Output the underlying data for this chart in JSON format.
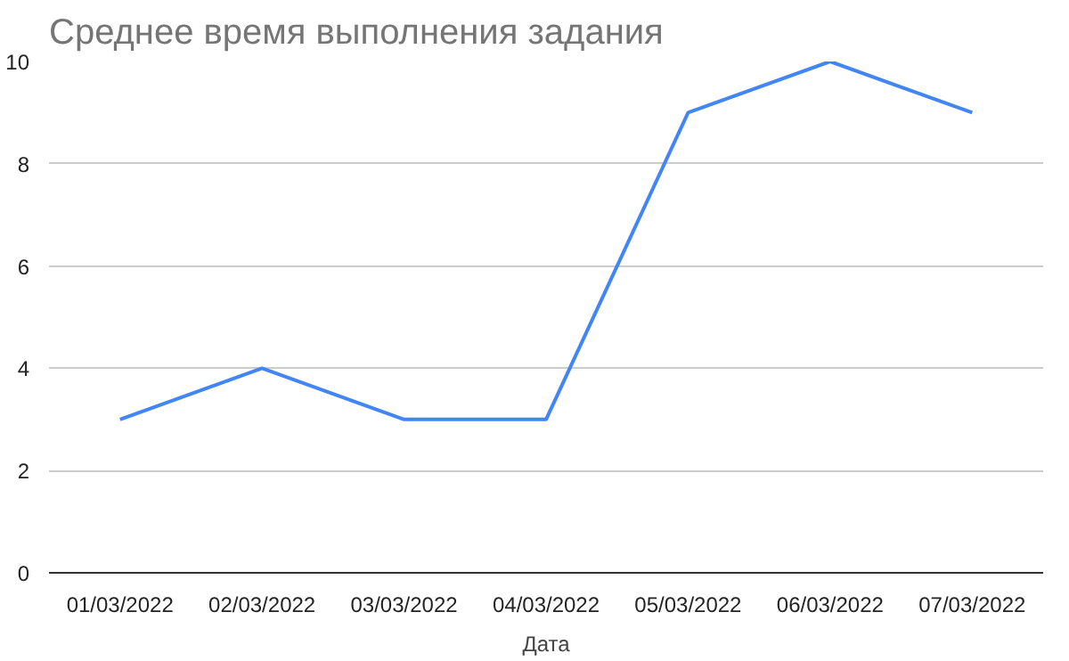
{
  "chart_data": {
    "type": "line",
    "title": "Среднее время выполнения задания",
    "xlabel": "Дата",
    "categories": [
      "01/03/2022",
      "02/03/2022",
      "03/03/2022",
      "04/03/2022",
      "05/03/2022",
      "06/03/2022",
      "07/03/2022"
    ],
    "series": [
      {
        "color": "#4285f4",
        "values": [
          3,
          4,
          3,
          3,
          9,
          10,
          9
        ]
      }
    ],
    "ylim": [
      0,
      10
    ],
    "yticks": [
      0,
      2,
      4,
      6,
      8,
      10
    ],
    "grid": "y",
    "marker": "none",
    "line_style": "solid"
  }
}
